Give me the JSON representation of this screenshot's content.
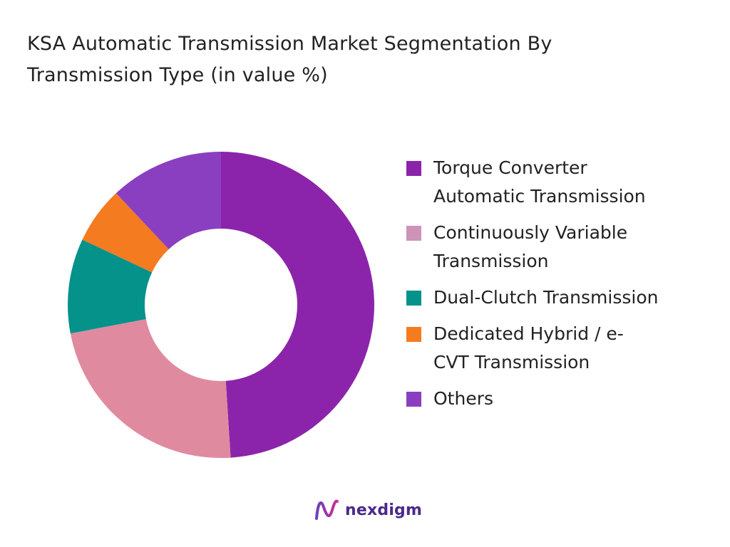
{
  "title": {
    "line1": "KSA Automatic Transmission Market Segmentation By",
    "line2": "Transmission Type (in value %)"
  },
  "chart_data": {
    "type": "pie",
    "variant": "donut",
    "categories": [
      "Torque Converter Automatic Transmission",
      "Continuously Variable Transmission",
      "Dual-Clutch Transmission",
      "Dedicated Hybrid / e-CVT Transmission",
      "Others"
    ],
    "values": [
      49,
      23,
      10,
      6,
      12
    ],
    "unit": "%",
    "colors": [
      "#8b24ab",
      "#e08aa0",
      "#04928a",
      "#f47b20",
      "#8a3fc0"
    ],
    "legend_position": "right",
    "start_angle_deg": 0,
    "direction": "clockwise"
  },
  "legend": {
    "items": [
      {
        "label_line1": "Torque Converter",
        "label_line2": "Automatic Transmission",
        "color": "#8b24ab"
      },
      {
        "label_line1": "Continuously Variable",
        "label_line2": "Transmission",
        "color": "#cf93b8"
      },
      {
        "label_line1": "Dual-Clutch Transmission",
        "label_line2": "",
        "color": "#04928a"
      },
      {
        "label_line1": "Dedicated Hybrid / e-",
        "label_line2": "CVT Transmission",
        "color": "#f47b20"
      },
      {
        "label_line1": "Others",
        "label_line2": "",
        "color": "#8a3fc0"
      }
    ]
  },
  "footer": {
    "brand": "nexdigm",
    "logo_icon": "nexdigm-logo-icon"
  }
}
